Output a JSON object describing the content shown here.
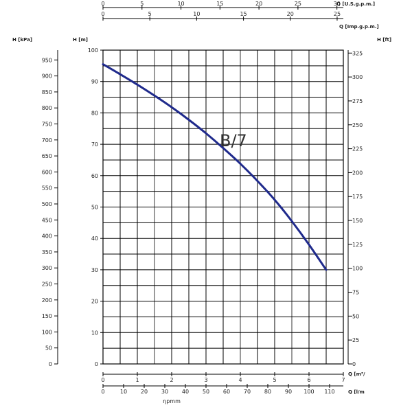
{
  "chart_data": {
    "type": "line",
    "title": "",
    "series": [
      {
        "name": "B/7",
        "x": [
          0,
          0.5,
          1,
          1.5,
          2,
          2.5,
          3,
          3.5,
          4,
          4.5,
          5,
          5.5,
          6,
          6.5
        ],
        "y": [
          95.5,
          92.3,
          89,
          85.5,
          81.8,
          77.8,
          73.5,
          68.8,
          63.8,
          58.3,
          52.3,
          45.5,
          38.0,
          30.0
        ]
      }
    ],
    "curve_label": "B/7",
    "xlim": [
      0,
      7
    ],
    "ylim": [
      0,
      100
    ],
    "grid": true,
    "axes": {
      "h_m": {
        "label": "H [m]",
        "ticks": [
          0,
          10,
          20,
          30,
          40,
          50,
          60,
          70,
          80,
          90,
          100
        ]
      },
      "h_kpa": {
        "label": "H [kPa]",
        "max": 980.665,
        "ticks": [
          0,
          50,
          100,
          150,
          200,
          250,
          300,
          350,
          400,
          450,
          500,
          550,
          600,
          650,
          700,
          750,
          800,
          850,
          900,
          950
        ],
        "labels": [
          "0",
          "50",
          "100",
          "150",
          "200",
          "250",
          "300",
          "350",
          "400",
          "450",
          "500",
          "550",
          "600",
          "650",
          "700",
          "750",
          "800",
          "850",
          "900",
          "950"
        ]
      },
      "h_ft": {
        "label": "H [ft]",
        "max": 328.084,
        "ticks": [
          0,
          25,
          50,
          75,
          100,
          125,
          150,
          175,
          200,
          225,
          250,
          275,
          300,
          325
        ],
        "labels": [
          "0",
          "25",
          "50",
          "75",
          "100",
          "125",
          "150",
          "175",
          "200",
          "225",
          "250",
          "275",
          "300",
          "325"
        ]
      },
      "q_m3h": {
        "label": "Q [m³/",
        "ticks": [
          0,
          1,
          2,
          3,
          4,
          5,
          6,
          7
        ]
      },
      "q_lmin": {
        "label": "Q [l/m",
        "max": 116.667,
        "ticks": [
          0,
          10,
          20,
          30,
          40,
          50,
          60,
          70,
          80,
          90,
          100,
          110
        ],
        "labels": [
          "0",
          "10",
          "20",
          "30",
          "40",
          "50",
          "60",
          "70",
          "80",
          "90",
          "100",
          "110"
        ]
      },
      "q_usgpm": {
        "label": "Q [U.S.g.p.m.]",
        "max": 30.8205,
        "ticks": [
          0,
          5,
          10,
          15,
          20,
          25,
          30
        ],
        "labels": [
          "0",
          "5",
          "10",
          "15",
          "20",
          "25",
          "30"
        ]
      },
      "q_impgpm": {
        "label": "Q [Imp.g.p.m.]",
        "max": 25.6631,
        "ticks": [
          0,
          5,
          10,
          15,
          20,
          25
        ],
        "labels": [
          "0",
          "5",
          "10",
          "15",
          "20",
          "25"
        ]
      },
      "bottom_footnote": "ηpmm"
    },
    "colors": {
      "curve": "#1f2a8c",
      "grid": "#000000",
      "grid_alt": "#9a9a9a",
      "axis": "#000000"
    }
  }
}
